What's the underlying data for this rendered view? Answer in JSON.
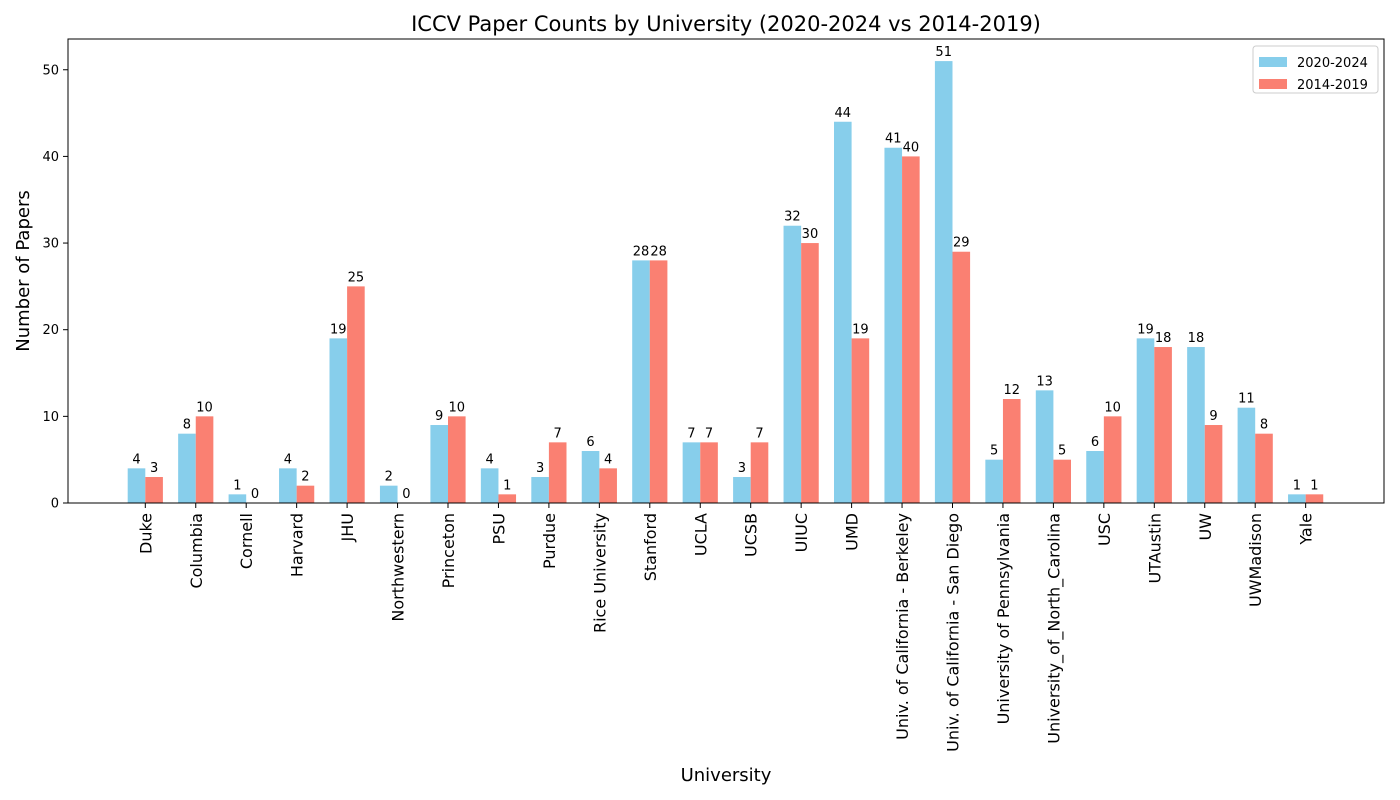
{
  "chart_data": {
    "type": "bar",
    "title": "ICCV Paper Counts by University (2020-2024 vs 2014-2019)",
    "xlabel": "University",
    "ylabel": "Number of Papers",
    "ylim": [
      0,
      53.55
    ],
    "yticks": [
      0,
      10,
      20,
      30,
      40,
      50
    ],
    "grid": false,
    "legend_position": "top-right",
    "categories": [
      "Duke",
      "Columbia",
      "Cornell",
      "Harvard",
      "JHU",
      "Northwestern",
      "Princeton",
      "PSU",
      "Purdue",
      "Rice University",
      "Stanford",
      "UCLA",
      "UCSB",
      "UIUC",
      "UMD",
      "Univ. of California - Berkeley",
      "Univ. of California - San Diego",
      "University of Pennsylvania",
      "University_of_North_Carolina",
      "USC",
      "UTAustin",
      "UW",
      "UWMadison",
      "Yale"
    ],
    "series": [
      {
        "name": "2020-2024",
        "color": "#87ceeb",
        "values": [
          4,
          8,
          1,
          4,
          19,
          2,
          9,
          4,
          3,
          6,
          28,
          7,
          3,
          32,
          44,
          41,
          51,
          5,
          13,
          6,
          19,
          18,
          11,
          1
        ]
      },
      {
        "name": "2014-2019",
        "color": "#fa8072",
        "values": [
          3,
          10,
          0,
          2,
          25,
          0,
          10,
          1,
          7,
          4,
          28,
          7,
          7,
          30,
          19,
          40,
          29,
          12,
          5,
          10,
          18,
          9,
          8,
          1
        ]
      }
    ]
  }
}
